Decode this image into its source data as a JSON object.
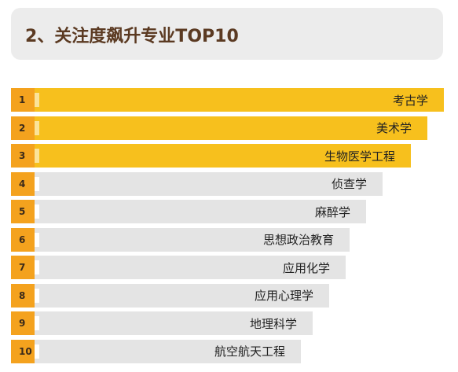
{
  "title": "2、关注度飙升专业TOP10",
  "colors": {
    "highlight": "#f7c01d",
    "rank": "#f4a21e",
    "muted": "#e4e4e4"
  },
  "chart_data": {
    "type": "bar",
    "orientation": "horizontal",
    "categories": [
      "考古学",
      "美术学",
      "生物医学工程",
      "侦查学",
      "麻醉学",
      "思想政治教育",
      "应用化学",
      "应用心理学",
      "地理科学",
      "航空航天工程"
    ],
    "ranks": [
      "1",
      "2",
      "3",
      "4",
      "5",
      "6",
      "7",
      "8",
      "9",
      "10"
    ],
    "values": [
      10,
      9.6,
      9.2,
      8.5,
      8.1,
      7.7,
      7.6,
      7.2,
      6.8,
      6.5
    ],
    "highlight_count": 3,
    "xlim": [
      0,
      10
    ]
  }
}
